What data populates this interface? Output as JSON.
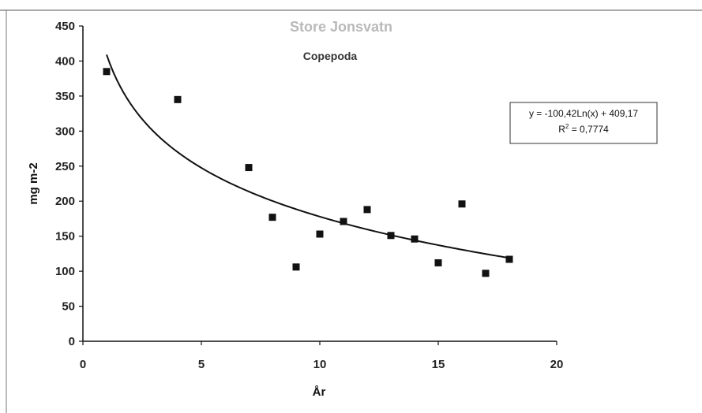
{
  "chart_data": {
    "type": "scatter",
    "title": "Store Jonsvatn",
    "subtitle": "Copepoda",
    "xlabel": "År",
    "ylabel": "mg m-2",
    "xlim": [
      0,
      20
    ],
    "ylim": [
      0,
      450
    ],
    "x_ticks": [
      "0",
      "5",
      "10",
      "15",
      "20"
    ],
    "y_ticks": [
      "0",
      "50",
      "100",
      "150",
      "200",
      "250",
      "300",
      "350",
      "400",
      "450"
    ],
    "series": [
      {
        "marker": "square",
        "color": "#111111",
        "x": [
          1,
          4,
          7,
          8,
          9,
          10,
          11,
          12,
          13,
          14,
          15,
          16,
          17,
          18
        ],
        "y": [
          385,
          345,
          248,
          177,
          106,
          153,
          171,
          188,
          151,
          146,
          112,
          196,
          97,
          117
        ]
      }
    ],
    "trendline": {
      "type": "logarithmic",
      "a": -100.42,
      "b": 409.17,
      "x_range": [
        1,
        18
      ],
      "color": "#111111",
      "equation_label": "y = -100,42Ln(x) + 409,17",
      "r2_prefix": "R",
      "r2_sup": "2",
      "r2_value": " = 0,7774"
    },
    "grid": false,
    "legend": "none"
  }
}
